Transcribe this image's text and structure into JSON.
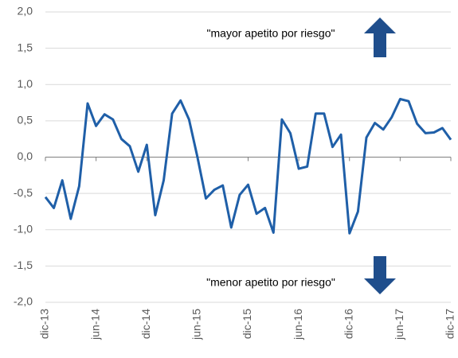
{
  "chart_data": {
    "type": "line",
    "categories": [
      "dic-13",
      null,
      null,
      null,
      null,
      null,
      "jun-14",
      null,
      null,
      null,
      null,
      null,
      "dic-14",
      null,
      null,
      null,
      null,
      null,
      "jun-15",
      null,
      null,
      null,
      null,
      null,
      "dic-15",
      null,
      null,
      null,
      null,
      null,
      "jun-16",
      null,
      null,
      null,
      null,
      null,
      "dic-16",
      null,
      null,
      null,
      null,
      null,
      "jun-17",
      null,
      null,
      null,
      null,
      null,
      "dic-17"
    ],
    "series": [
      {
        "name": "apetito por riesgo",
        "color": "#1f5fa8",
        "values": [
          -0.55,
          -0.7,
          -0.32,
          -0.85,
          -0.4,
          0.74,
          0.43,
          0.59,
          0.52,
          0.25,
          0.15,
          -0.2,
          0.17,
          -0.8,
          -0.32,
          0.6,
          0.78,
          0.52,
          0.0,
          -0.57,
          -0.45,
          -0.39,
          -0.97,
          -0.52,
          -0.38,
          -0.78,
          -0.7,
          -1.04,
          0.52,
          0.33,
          -0.16,
          -0.13,
          0.6,
          0.6,
          0.14,
          0.31,
          -1.05,
          -0.75,
          0.27,
          0.47,
          0.38,
          0.55,
          0.8,
          0.77,
          0.46,
          0.33,
          0.34,
          0.4,
          0.24
        ]
      }
    ],
    "ylim": [
      -2,
      2
    ],
    "yticks": [
      {
        "value": -2,
        "label": "-2,0"
      },
      {
        "value": -1.5,
        "label": "-1,5"
      },
      {
        "value": -1,
        "label": "-1,0"
      },
      {
        "value": -0.5,
        "label": "-0,5"
      },
      {
        "value": 0,
        "label": "0,0"
      },
      {
        "value": 0.5,
        "label": "0,5"
      },
      {
        "value": 1,
        "label": "1,0"
      },
      {
        "value": 1.5,
        "label": "1,5"
      },
      {
        "value": 2,
        "label": "2,0"
      }
    ],
    "grid": true,
    "annotations": [
      "\"mayor apetito por riesgo\"",
      "\"menor apetito por riesgo\""
    ]
  }
}
